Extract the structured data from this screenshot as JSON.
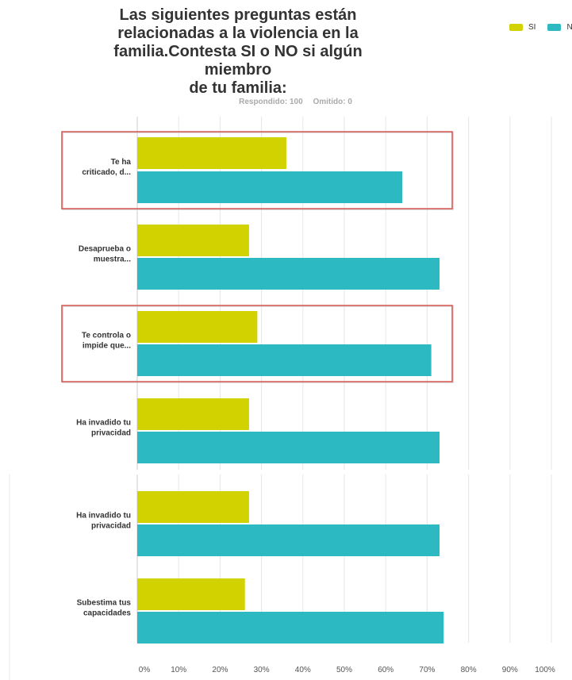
{
  "title": "Las siguientes preguntas están\nrelacionadas a la violencia en la\nfamilia.Contesta SI o NO si algún miembro\nde tu familia:",
  "stats": {
    "answered": "Respondido: 100",
    "skipped": "Omitido: 0"
  },
  "colors": {
    "si": "#d1d200",
    "no": "#2cb9c2",
    "highlight": "#d9534f",
    "grid": "#e6e6e6"
  },
  "chart_data": {
    "type": "bar",
    "orientation": "horizontal",
    "title": "Las siguientes preguntas están relacionadas a la violencia en la familia.Contesta SI o NO si algún miembro de tu familia:",
    "categories": [
      "Te ha criticado, d...",
      "Desaprueba o muestra...",
      "Te controla o impide que...",
      "Ha invadido tu privacidad",
      "Ha invadido tu privacidad",
      "Subestima tus capacidades"
    ],
    "category_lines": [
      [
        "Te ha",
        "criticado, d..."
      ],
      [
        "Desaprueba o",
        "muestra..."
      ],
      [
        "Te controla o",
        "impide que..."
      ],
      [
        "Ha invadido tu",
        "privacidad"
      ],
      [
        "Ha invadido tu",
        "privacidad"
      ],
      [
        "Subestima tus",
        "capacidades"
      ]
    ],
    "series": [
      {
        "name": "SI",
        "color": "#d1d200",
        "values": [
          36,
          27,
          29,
          27,
          27,
          26
        ]
      },
      {
        "name": "NO",
        "color": "#2cb9c2",
        "values": [
          64,
          73,
          71,
          73,
          73,
          74
        ]
      }
    ],
    "xlim": [
      0,
      100
    ],
    "x_ticks": [
      "0%",
      "10%",
      "20%",
      "30%",
      "40%",
      "50%",
      "60%",
      "70%",
      "80%",
      "90%",
      "100%"
    ],
    "highlighted_categories": [
      0,
      2
    ],
    "legend": "top-right",
    "grid": true
  }
}
